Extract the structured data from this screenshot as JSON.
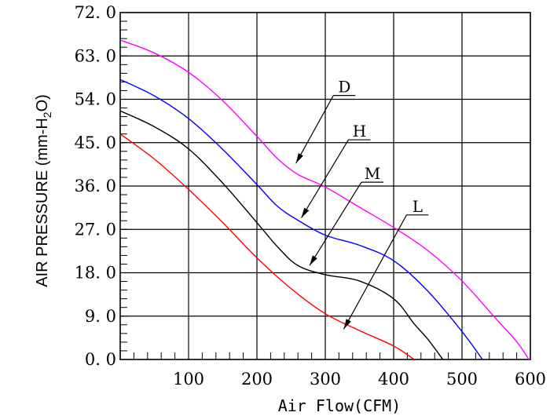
{
  "chart_data": {
    "type": "line",
    "title": "",
    "xlabel": "Air Flow(CFM)",
    "ylabel": "AIR PRESSURE (mm-H2O)",
    "ylabel_parts": {
      "main": "AIR PRESSURE (mm-H",
      "sub": "2",
      "tail": "O)"
    },
    "xlim": [
      0,
      600
    ],
    "ylim": [
      0,
      72
    ],
    "x_ticks": [
      100,
      200,
      300,
      400,
      500,
      600
    ],
    "x_tick_labels": [
      "100",
      "200",
      "300",
      "400",
      "500",
      "600"
    ],
    "y_ticks": [
      0,
      9,
      18,
      27,
      36,
      45,
      54,
      63,
      72
    ],
    "y_tick_labels": [
      "0. 0",
      "9. 0",
      "18. 0",
      "27. 0",
      "36. 0",
      "45. 0",
      "54. 0",
      "63. 0",
      "72. 0"
    ],
    "x_grid_step": 100,
    "y_grid_step": 9,
    "y_minor_step": 1.8,
    "x_minor_step": 20,
    "grid": true,
    "legend": "none",
    "series": [
      {
        "name": "D",
        "color": "#ff00ff",
        "points": [
          [
            0,
            66.3
          ],
          [
            50,
            63.6
          ],
          [
            100,
            59.6
          ],
          [
            150,
            53.7
          ],
          [
            200,
            46.3
          ],
          [
            230,
            41.7
          ],
          [
            260,
            38.4
          ],
          [
            300,
            35.8
          ],
          [
            350,
            31.6
          ],
          [
            400,
            27.4
          ],
          [
            450,
            22.6
          ],
          [
            500,
            16.3
          ],
          [
            550,
            8.4
          ],
          [
            580,
            3.7
          ],
          [
            598,
            0
          ]
        ],
        "callout": {
          "label": "D",
          "label_x": 328,
          "label_y": 54.8,
          "arrow_x": 257,
          "arrow_y": 40.7
        }
      },
      {
        "name": "H",
        "color": "#0000ff",
        "points": [
          [
            0,
            58.1
          ],
          [
            50,
            54.7
          ],
          [
            100,
            50.0
          ],
          [
            150,
            43.6
          ],
          [
            200,
            36.3
          ],
          [
            230,
            31.8
          ],
          [
            260,
            28.9
          ],
          [
            300,
            25.8
          ],
          [
            350,
            23.7
          ],
          [
            400,
            20.5
          ],
          [
            450,
            14.2
          ],
          [
            500,
            5.8
          ],
          [
            530,
            0
          ]
        ],
        "callout": {
          "label": "H",
          "label_x": 350,
          "label_y": 45.6,
          "arrow_x": 265,
          "arrow_y": 29.4
        }
      },
      {
        "name": "M",
        "color": "#000000",
        "points": [
          [
            0,
            51.6
          ],
          [
            50,
            48.3
          ],
          [
            100,
            43.7
          ],
          [
            150,
            36.6
          ],
          [
            200,
            28.4
          ],
          [
            230,
            23.4
          ],
          [
            260,
            19.5
          ],
          [
            300,
            17.6
          ],
          [
            350,
            16.3
          ],
          [
            400,
            12.6
          ],
          [
            430,
            7.4
          ],
          [
            450,
            4.2
          ],
          [
            472,
            0
          ]
        ],
        "callout": {
          "label": "M",
          "label_x": 369,
          "label_y": 36.8,
          "arrow_x": 277,
          "arrow_y": 19.5
        }
      },
      {
        "name": "L",
        "color": "#ff0000",
        "points": [
          [
            0,
            46.8
          ],
          [
            50,
            41.6
          ],
          [
            100,
            35.3
          ],
          [
            150,
            28.4
          ],
          [
            200,
            21.1
          ],
          [
            250,
            14.7
          ],
          [
            300,
            9.5
          ],
          [
            350,
            6.0
          ],
          [
            400,
            2.8
          ],
          [
            430,
            0
          ]
        ],
        "callout": {
          "label": "L",
          "label_x": 435,
          "label_y": 30.0,
          "arrow_x": 327,
          "arrow_y": 6.3
        }
      }
    ]
  }
}
